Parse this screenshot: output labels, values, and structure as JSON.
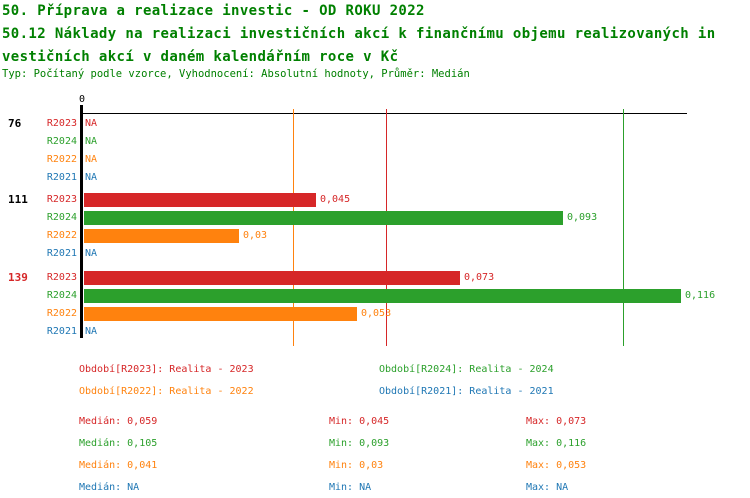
{
  "header": {
    "title_line1": "50. Příprava a realizace investic - OD ROKU 2022",
    "title_line2": "50.12 Náklady na realizaci investičních akcí k finančnímu objemu realizovaných in",
    "title_line3": "vestičních akcí v daném kalendářním roce v Kč",
    "subtitle": "Typ: Počítaný podle vzorce, Vyhodnocení: Absolutní hodnoty, Průměr: Medián"
  },
  "colors": {
    "title": "#008000",
    "axis": "#000000",
    "group_label": "#000000",
    "highlight_group_label": "#d62728",
    "series": {
      "R2023": "#d62728",
      "R2024": "#2ca02c",
      "R2022": "#ff820e",
      "R2021": "#1f77b4"
    }
  },
  "chart_data": {
    "type": "bar",
    "orientation": "horizontal",
    "value_axis": {
      "zero_label": "0",
      "min": 0,
      "max": 0.127,
      "gridlines": false
    },
    "na_text": "NA",
    "groups": [
      {
        "label": "76",
        "highlighted": false,
        "rows": [
          {
            "series": "R2023",
            "value": null,
            "display": "NA"
          },
          {
            "series": "R2024",
            "value": null,
            "display": "NA"
          },
          {
            "series": "R2022",
            "value": null,
            "display": "NA"
          },
          {
            "series": "R2021",
            "value": null,
            "display": "NA"
          }
        ]
      },
      {
        "label": "111",
        "highlighted": false,
        "rows": [
          {
            "series": "R2023",
            "value": 0.045,
            "display": "0,045"
          },
          {
            "series": "R2024",
            "value": 0.093,
            "display": "0,093"
          },
          {
            "series": "R2022",
            "value": 0.03,
            "display": "0,03"
          },
          {
            "series": "R2021",
            "value": null,
            "display": "NA"
          }
        ]
      },
      {
        "label": "139",
        "highlighted": true,
        "rows": [
          {
            "series": "R2023",
            "value": 0.073,
            "display": "0,073"
          },
          {
            "series": "R2024",
            "value": 0.116,
            "display": "0,116"
          },
          {
            "series": "R2022",
            "value": 0.053,
            "display": "0,053"
          },
          {
            "series": "R2021",
            "value": null,
            "display": "NA"
          }
        ]
      }
    ],
    "median_lines": [
      {
        "series": "R2022",
        "value": 0.041
      },
      {
        "series": "R2023",
        "value": 0.059
      },
      {
        "series": "R2024",
        "value": 0.105
      }
    ]
  },
  "legend": {
    "items": [
      {
        "series": "R2023",
        "label": "Období[R2023]: Realita - 2023"
      },
      {
        "series": "R2024",
        "label": "Období[R2024]: Realita - 2024"
      },
      {
        "series": "R2022",
        "label": "Období[R2022]: Realita - 2022"
      },
      {
        "series": "R2021",
        "label": "Období[R2021]: Realita - 2021"
      }
    ]
  },
  "stats": {
    "labels": {
      "median": "Medián",
      "min": "Min",
      "max": "Max"
    },
    "rows": [
      {
        "series": "R2023",
        "median": "0,059",
        "min": "0,045",
        "max": "0,073"
      },
      {
        "series": "R2024",
        "median": "0,105",
        "min": "0,093",
        "max": "0,116"
      },
      {
        "series": "R2022",
        "median": "0,041",
        "min": "0,03",
        "max": "0,053"
      },
      {
        "series": "R2021",
        "median": "NA",
        "min": "NA",
        "max": "NA"
      }
    ]
  }
}
